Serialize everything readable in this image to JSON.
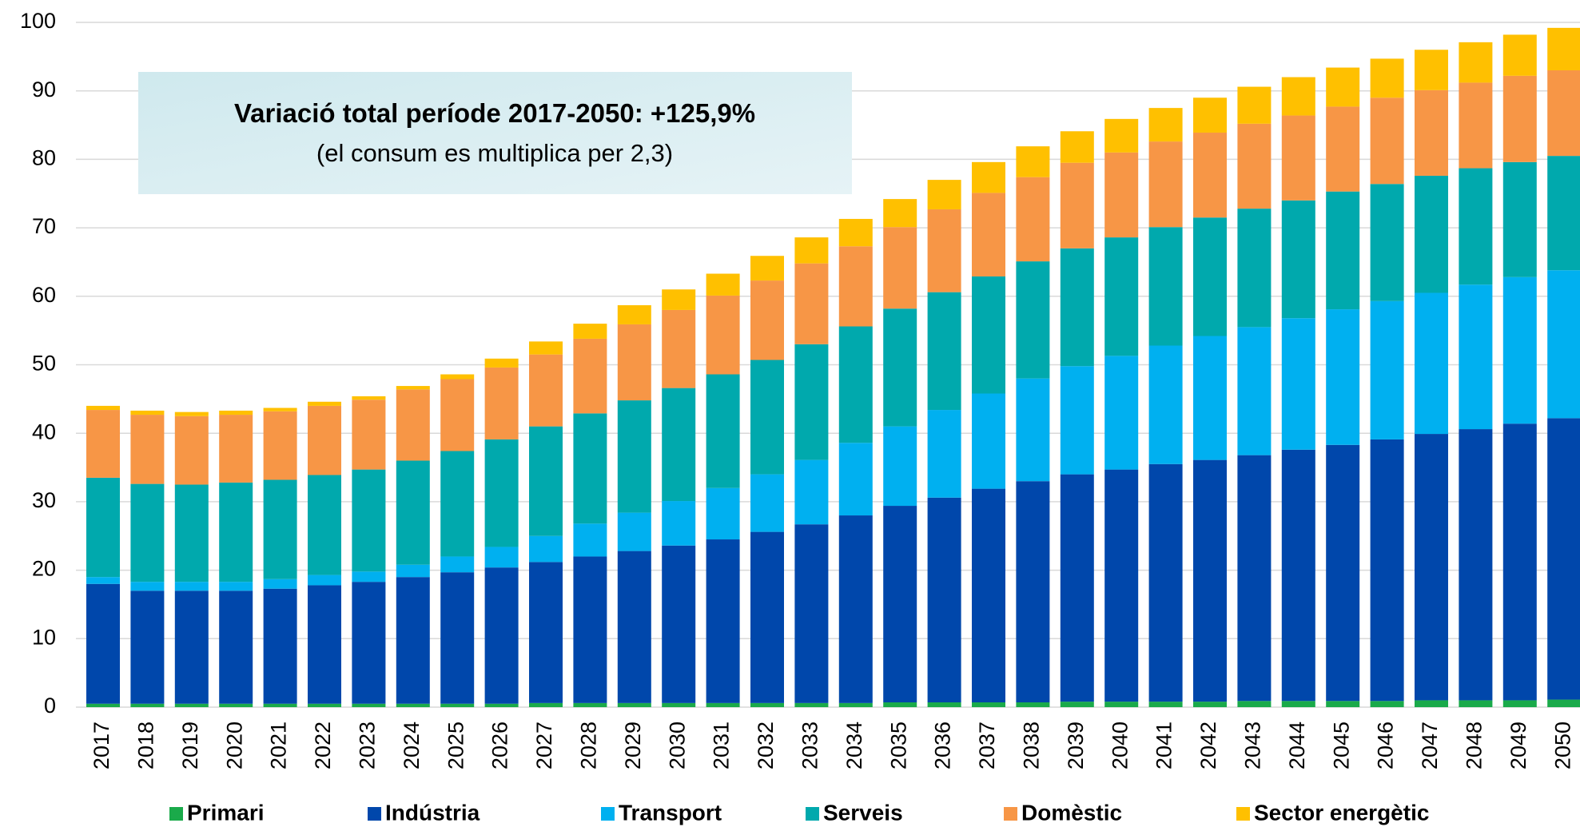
{
  "chart_data": {
    "type": "bar",
    "stacked": true,
    "annotation": {
      "title": "Variació total període 2017-2050:",
      "value": "+125,9%",
      "note": "(el consum es multiplica per 2,3)"
    },
    "categories": [
      "2017",
      "2018",
      "2019",
      "2020",
      "2021",
      "2022",
      "2023",
      "2024",
      "2025",
      "2026",
      "2027",
      "2028",
      "2029",
      "2030",
      "2031",
      "2032",
      "2033",
      "2034",
      "2035",
      "2036",
      "2037",
      "2038",
      "2039",
      "2040",
      "2041",
      "2042",
      "2043",
      "2044",
      "2045",
      "2046",
      "2047",
      "2048",
      "2049",
      "2050"
    ],
    "series": [
      {
        "name": "Primari",
        "color": "#1aaa4a",
        "values": [
          0.5,
          0.5,
          0.5,
          0.5,
          0.5,
          0.5,
          0.5,
          0.5,
          0.5,
          0.5,
          0.6,
          0.6,
          0.6,
          0.6,
          0.6,
          0.6,
          0.6,
          0.6,
          0.7,
          0.7,
          0.7,
          0.7,
          0.8,
          0.8,
          0.8,
          0.8,
          0.9,
          0.9,
          0.9,
          0.9,
          1.0,
          1.0,
          1.0,
          1.1
        ]
      },
      {
        "name": "Indústria",
        "color": "#0047ab",
        "values": [
          17.5,
          16.5,
          16.5,
          16.5,
          16.8,
          17.3,
          17.8,
          18.5,
          19.2,
          19.9,
          20.6,
          21.4,
          22.2,
          23.0,
          23.9,
          25.0,
          26.1,
          27.4,
          28.7,
          29.9,
          31.2,
          32.3,
          33.2,
          33.9,
          34.7,
          35.3,
          35.9,
          36.7,
          37.4,
          38.2,
          38.9,
          39.6,
          40.4,
          41.1
        ]
      },
      {
        "name": "Transport",
        "color": "#00b0f0",
        "values": [
          1.0,
          1.3,
          1.3,
          1.3,
          1.4,
          1.5,
          1.5,
          1.8,
          2.3,
          3.0,
          3.8,
          4.8,
          5.6,
          6.5,
          7.5,
          8.4,
          9.4,
          10.6,
          11.6,
          12.8,
          13.9,
          15.0,
          15.8,
          16.6,
          17.3,
          18.1,
          18.7,
          19.2,
          19.8,
          20.2,
          20.6,
          21.1,
          21.4,
          21.6
        ]
      },
      {
        "name": "Serveis",
        "color": "#00a9ad",
        "values": [
          14.5,
          14.3,
          14.2,
          14.5,
          14.5,
          14.6,
          14.9,
          15.2,
          15.4,
          15.7,
          16.0,
          16.1,
          16.4,
          16.5,
          16.6,
          16.7,
          16.9,
          17.0,
          17.2,
          17.2,
          17.1,
          17.1,
          17.2,
          17.3,
          17.3,
          17.3,
          17.3,
          17.2,
          17.2,
          17.1,
          17.1,
          17.0,
          16.8,
          16.7
        ]
      },
      {
        "name": "Domèstic",
        "color": "#f79646",
        "values": [
          9.9,
          10.1,
          10.0,
          9.9,
          10.0,
          10.1,
          10.2,
          10.4,
          10.5,
          10.5,
          10.5,
          10.9,
          11.1,
          11.4,
          11.5,
          11.6,
          11.8,
          11.7,
          11.9,
          12.1,
          12.2,
          12.3,
          12.5,
          12.4,
          12.5,
          12.4,
          12.4,
          12.4,
          12.4,
          12.6,
          12.5,
          12.5,
          12.6,
          12.5
        ]
      },
      {
        "name": "Sector energètic",
        "color": "#ffc000",
        "values": [
          0.6,
          0.6,
          0.6,
          0.6,
          0.5,
          0.6,
          0.5,
          0.5,
          0.7,
          1.3,
          1.9,
          2.2,
          2.8,
          3.0,
          3.2,
          3.6,
          3.8,
          4.0,
          4.1,
          4.3,
          4.5,
          4.5,
          4.6,
          4.9,
          4.9,
          5.1,
          5.4,
          5.6,
          5.7,
          5.7,
          5.9,
          5.9,
          6.0,
          6.2
        ]
      }
    ],
    "ylim": [
      0,
      100
    ],
    "yticks": [
      0,
      10,
      20,
      30,
      40,
      50,
      60,
      70,
      80,
      90,
      100
    ],
    "grid": true
  }
}
